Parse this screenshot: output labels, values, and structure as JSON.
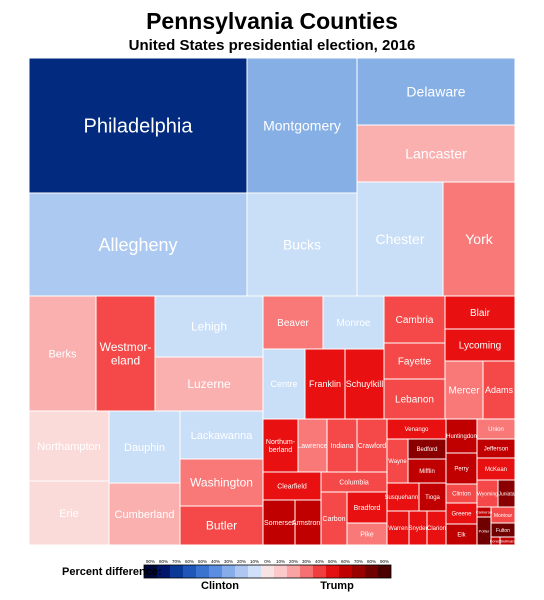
{
  "chart_data": {
    "type": "treemap",
    "title": "Pennsylvania Counties",
    "subtitle": "United States presidential election, 2016",
    "legend": {
      "label": "Percent difference:",
      "left_label": "Clinton",
      "right_label": "Trump",
      "ticks": [
        "90%",
        "80%",
        "70%",
        "60%",
        "50%",
        "40%",
        "30%",
        "20%",
        "10%",
        "0%",
        "10%",
        "20%",
        "30%",
        "40%",
        "50%",
        "60%",
        "70%",
        "80%",
        "90%"
      ],
      "colors": [
        "#00083a",
        "#00166b",
        "#0a3896",
        "#1f56b8",
        "#3a73d0",
        "#5b8ee0",
        "#86ace9",
        "#adc7f1",
        "#cfe0f8",
        "#f6e3e3",
        "#fbc9c9",
        "#f9a3a3",
        "#f57070",
        "#f03d3d",
        "#e21010",
        "#c00000",
        "#990000",
        "#700000",
        "#4a0000"
      ]
    },
    "counties": [
      {
        "name": "Philadelphia",
        "color": "#022a7e",
        "labelColor": "#ffffff"
      },
      {
        "name": "Montgomery",
        "color": "#86afe6",
        "labelColor": "#ffffff"
      },
      {
        "name": "Delaware",
        "color": "#86afe6",
        "labelColor": "#ffffff"
      },
      {
        "name": "Lancaster",
        "color": "#fbb0b0",
        "labelColor": "#ffffff"
      },
      {
        "name": "Allegheny",
        "color": "#acc9f2",
        "labelColor": "#ffffff"
      },
      {
        "name": "Bucks",
        "color": "#c9def7",
        "labelColor": "#ffffff"
      },
      {
        "name": "Chester",
        "color": "#c9def7",
        "labelColor": "#ffffff"
      },
      {
        "name": "York",
        "color": "#f97878",
        "labelColor": "#ffffff"
      },
      {
        "name": "Berks",
        "color": "#fbb0b0",
        "labelColor": "#ffffff"
      },
      {
        "name": "Westmor-eland",
        "color": "#f54848",
        "labelColor": "#ffffff"
      },
      {
        "name": "Lehigh",
        "color": "#c9def7",
        "labelColor": "#ffffff"
      },
      {
        "name": "Luzerne",
        "color": "#fbb0b0",
        "labelColor": "#ffffff"
      },
      {
        "name": "Northampton",
        "color": "#fbdada",
        "labelColor": "#ffffff"
      },
      {
        "name": "Dauphin",
        "color": "#c9def7",
        "labelColor": "#ffffff"
      },
      {
        "name": "Lackawanna",
        "color": "#c9def7",
        "labelColor": "#ffffff"
      },
      {
        "name": "Erie",
        "color": "#fbdada",
        "labelColor": "#ffffff"
      },
      {
        "name": "Cumberland",
        "color": "#fbb0b0",
        "labelColor": "#ffffff"
      },
      {
        "name": "Washington",
        "color": "#f97878",
        "labelColor": "#ffffff"
      },
      {
        "name": "Butler",
        "color": "#f54848",
        "labelColor": "#ffffff"
      },
      {
        "name": "Beaver",
        "color": "#f97878",
        "labelColor": "#ffffff"
      },
      {
        "name": "Monroe",
        "color": "#c9def7",
        "labelColor": "#ffffff"
      },
      {
        "name": "Centre",
        "color": "#c9def7",
        "labelColor": "#ffffff"
      },
      {
        "name": "Franklin",
        "color": "#e81010",
        "labelColor": "#ffffff"
      },
      {
        "name": "Schuylkill",
        "color": "#e81010",
        "labelColor": "#ffffff"
      },
      {
        "name": "Cambria",
        "color": "#f54848",
        "labelColor": "#ffffff"
      },
      {
        "name": "Fayette",
        "color": "#f54848",
        "labelColor": "#ffffff"
      },
      {
        "name": "Lebanon",
        "color": "#f54848",
        "labelColor": "#ffffff"
      },
      {
        "name": "Blair",
        "color": "#e81010",
        "labelColor": "#ffffff"
      },
      {
        "name": "Lycoming",
        "color": "#e81010",
        "labelColor": "#ffffff"
      },
      {
        "name": "Mercer",
        "color": "#f97878",
        "labelColor": "#ffffff"
      },
      {
        "name": "Adams",
        "color": "#f54848",
        "labelColor": "#ffffff"
      },
      {
        "name": "Northum-berland",
        "color": "#e81010",
        "labelColor": "#ffffff"
      },
      {
        "name": "Lawrence",
        "color": "#f97878",
        "labelColor": "#ffffff"
      },
      {
        "name": "Indiana",
        "color": "#f54848",
        "labelColor": "#ffffff"
      },
      {
        "name": "Crawford",
        "color": "#f54848",
        "labelColor": "#ffffff"
      },
      {
        "name": "Clearfield",
        "color": "#e81010",
        "labelColor": "#ffffff"
      },
      {
        "name": "Columbia",
        "color": "#f54848",
        "labelColor": "#ffffff"
      },
      {
        "name": "Somerset",
        "color": "#c00000",
        "labelColor": "#ffffff"
      },
      {
        "name": "Armstrong",
        "color": "#c00000",
        "labelColor": "#ffffff"
      },
      {
        "name": "Carbon",
        "color": "#f54848",
        "labelColor": "#ffffff"
      },
      {
        "name": "Bradford",
        "color": "#e81010",
        "labelColor": "#ffffff"
      },
      {
        "name": "Pike",
        "color": "#f97878",
        "labelColor": "#ffffff"
      },
      {
        "name": "Venango",
        "color": "#e81010",
        "labelColor": "#ffffff"
      },
      {
        "name": "Wayne",
        "color": "#f54848",
        "labelColor": "#ffffff"
      },
      {
        "name": "Bedford",
        "color": "#8a0000",
        "labelColor": "#ffffff"
      },
      {
        "name": "Mifflin",
        "color": "#c00000",
        "labelColor": "#ffffff"
      },
      {
        "name": "Susquehanna",
        "color": "#e81010",
        "labelColor": "#ffffff"
      },
      {
        "name": "Tioga",
        "color": "#c00000",
        "labelColor": "#ffffff"
      },
      {
        "name": "Warren",
        "color": "#e81010",
        "labelColor": "#ffffff"
      },
      {
        "name": "Snyder",
        "color": "#e81010",
        "labelColor": "#ffffff"
      },
      {
        "name": "Clarion",
        "color": "#e81010",
        "labelColor": "#ffffff"
      },
      {
        "name": "Huntingdon",
        "color": "#c00000",
        "labelColor": "#ffffff"
      },
      {
        "name": "Perry",
        "color": "#c00000",
        "labelColor": "#ffffff"
      },
      {
        "name": "Union",
        "color": "#f97878",
        "labelColor": "#ffffff"
      },
      {
        "name": "Jefferson",
        "color": "#c00000",
        "labelColor": "#ffffff"
      },
      {
        "name": "McKean",
        "color": "#e81010",
        "labelColor": "#ffffff"
      },
      {
        "name": "Clinton",
        "color": "#f54848",
        "labelColor": "#ffffff"
      },
      {
        "name": "Wyoming",
        "color": "#f54848",
        "labelColor": "#ffffff"
      },
      {
        "name": "Juniata",
        "color": "#8a0000",
        "labelColor": "#ffffff"
      },
      {
        "name": "Greene",
        "color": "#e81010",
        "labelColor": "#ffffff"
      },
      {
        "name": "Montour",
        "color": "#f54848",
        "labelColor": "#ffffff"
      },
      {
        "name": "Elk",
        "color": "#c00000",
        "labelColor": "#ffffff"
      },
      {
        "name": "Fulton",
        "color": "#700000",
        "labelColor": "#ffffff"
      },
      {
        "name": "Potter",
        "color": "#700000",
        "labelColor": "#ffffff"
      },
      {
        "name": "Sullivan",
        "color": "#c00000",
        "labelColor": "#ffffff"
      },
      {
        "name": "Forest",
        "color": "#c00000",
        "labelColor": "#ffffff"
      },
      {
        "name": "Cameron",
        "color": "#c00000",
        "labelColor": "#ffffff"
      }
    ]
  }
}
